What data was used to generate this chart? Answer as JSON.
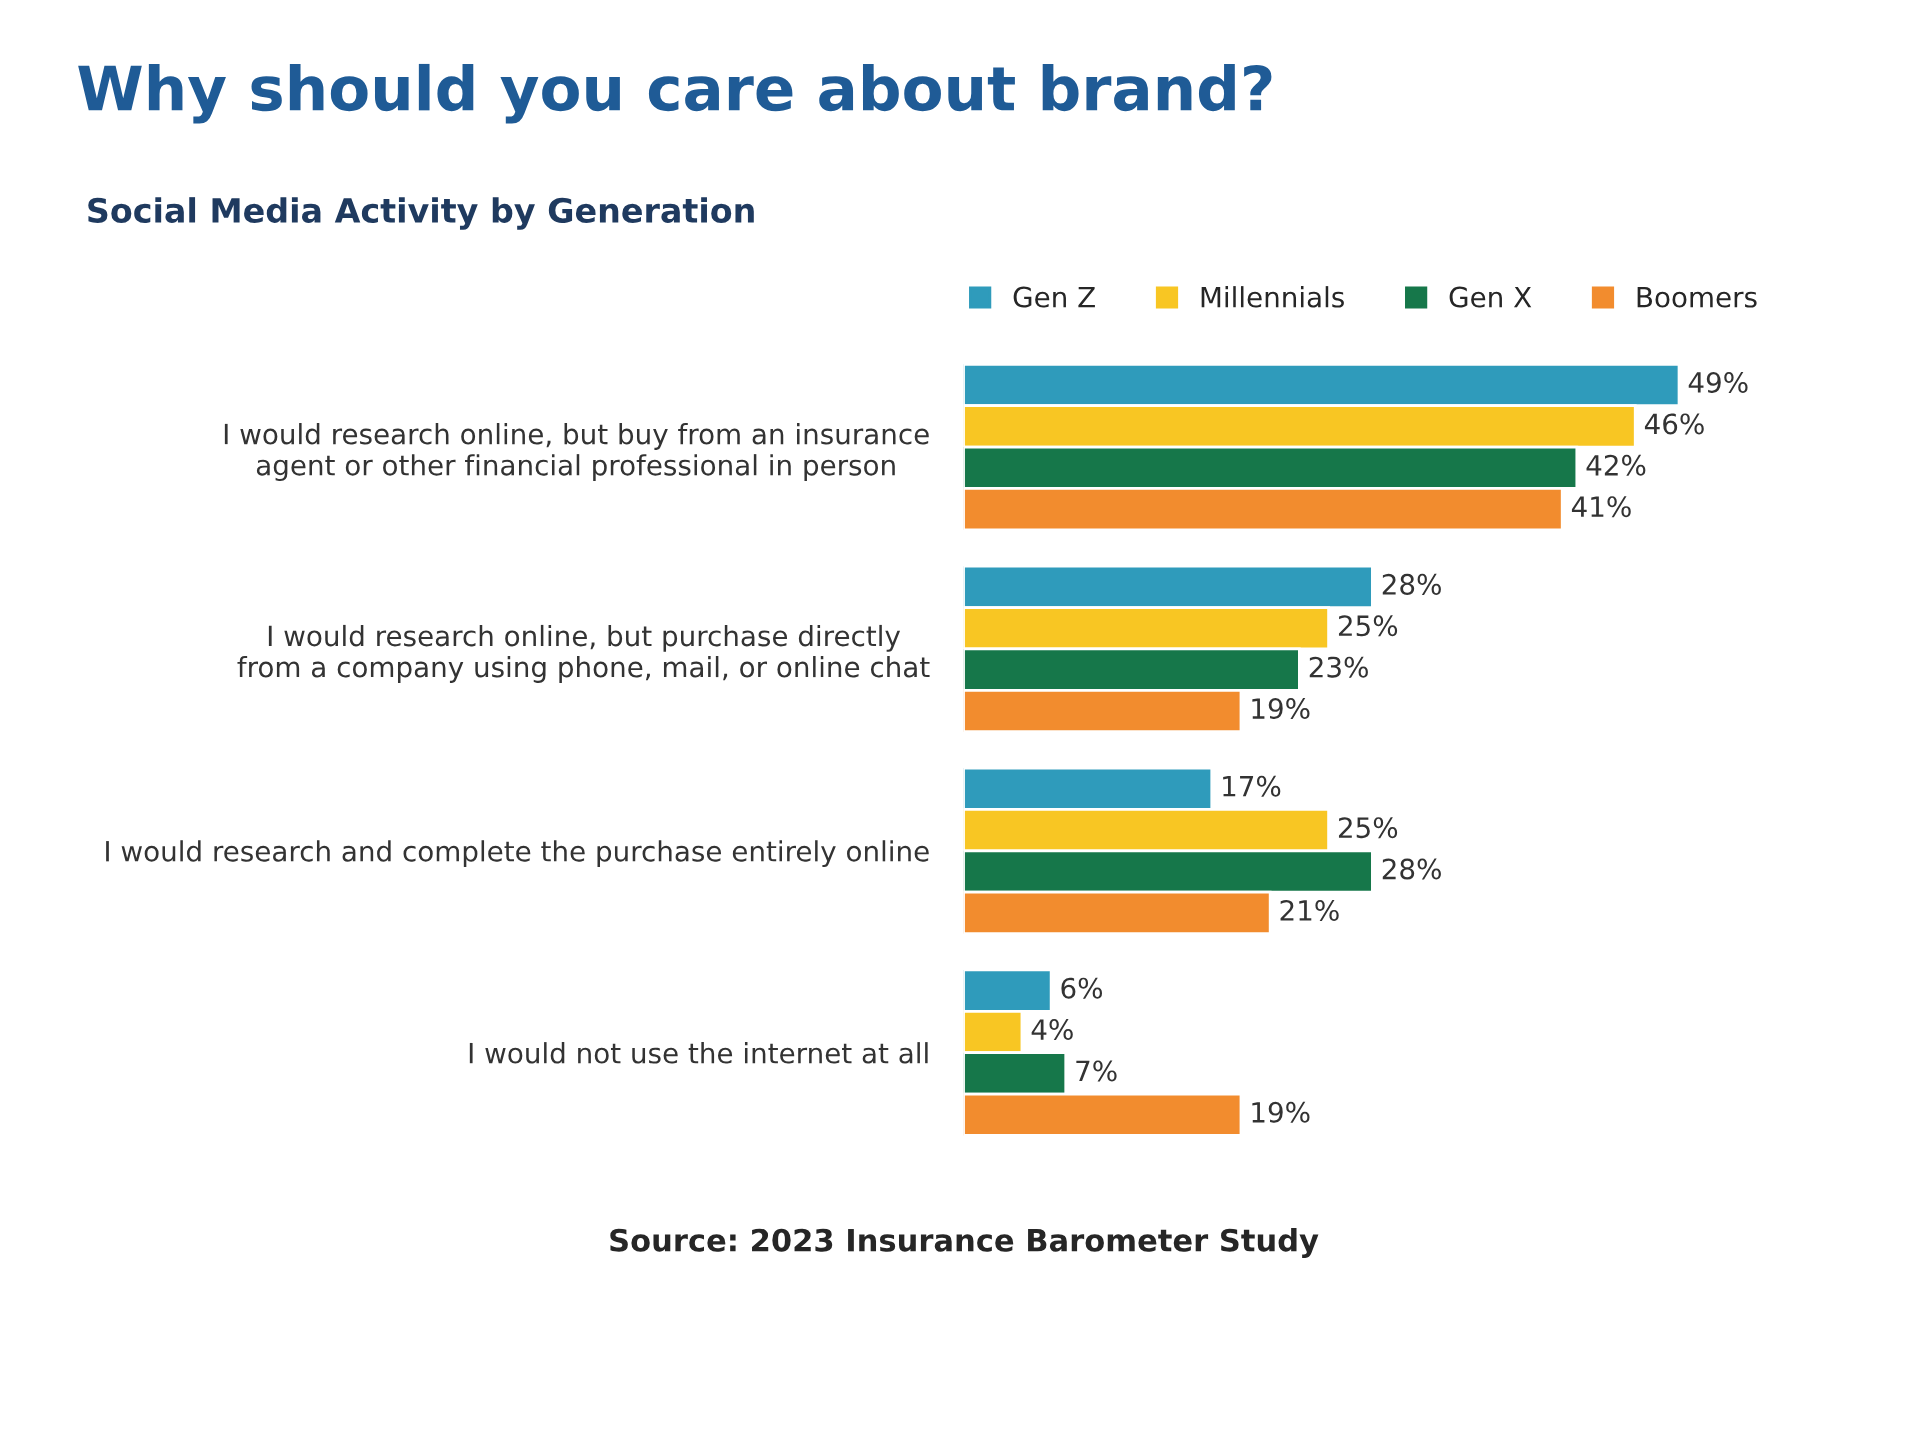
{
  "chart_data": {
    "type": "bar",
    "orientation": "horizontal",
    "title": "Why should you care about brand?",
    "subtitle": "Social Media Activity by Generation",
    "categories": [
      "I would research online, but buy from an insurance\nagent or other financial professional in person",
      "I would research online, but purchase directly\nfrom a company using phone, mail, or online chat",
      "I would research and complete the purchase entirely online",
      "I would not use the internet at all"
    ],
    "series": [
      {
        "name": "Gen Z",
        "color": "#2f9bbb",
        "values": [
          49,
          28,
          17,
          6
        ],
        "value_labels": [
          "49%",
          "28%",
          "17%",
          "6%"
        ]
      },
      {
        "name": "Millennials",
        "color": "#f8c623",
        "values": [
          46,
          25,
          25,
          4
        ],
        "value_labels": [
          "46%",
          "25%",
          "25%",
          "4%"
        ]
      },
      {
        "name": "Gen X",
        "color": "#16774a",
        "values": [
          42,
          23,
          28,
          7
        ],
        "value_labels": [
          "42%",
          "23%",
          "28%",
          "7%"
        ]
      },
      {
        "name": "Boomers",
        "color": "#f28c2e",
        "values": [
          41,
          19,
          21,
          19
        ],
        "value_labels": [
          "41%",
          "19%",
          "21%",
          "19%"
        ]
      }
    ],
    "legend": "top",
    "grid": false,
    "annotations": [
      "Source: 2023 Insurance Barometer Study"
    ]
  }
}
